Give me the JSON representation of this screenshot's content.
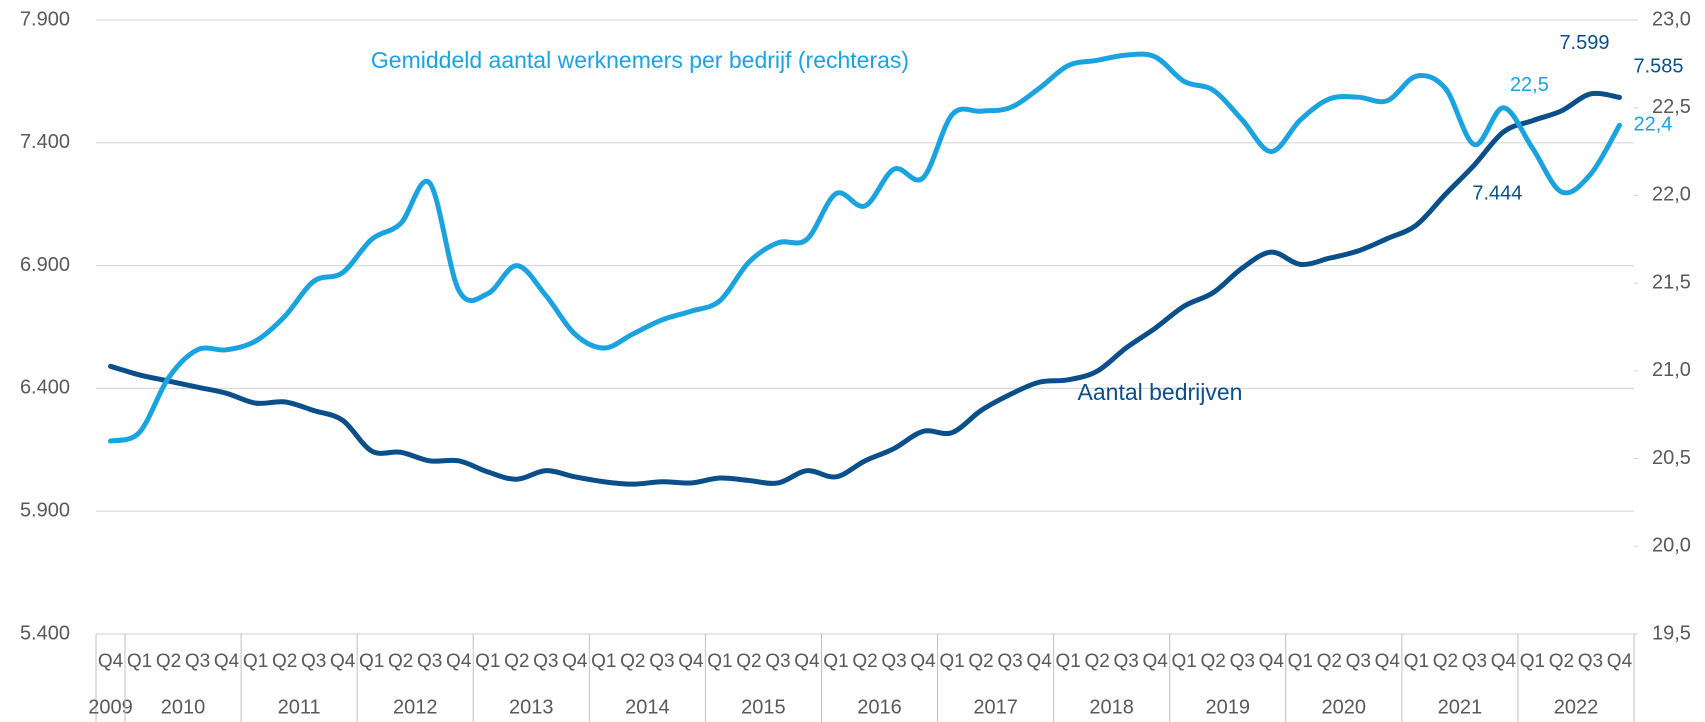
{
  "chart_data": {
    "type": "line",
    "categories": [
      "Q4",
      "Q1",
      "Q2",
      "Q3",
      "Q4",
      "Q1",
      "Q2",
      "Q3",
      "Q4",
      "Q1",
      "Q2",
      "Q3",
      "Q4",
      "Q1",
      "Q2",
      "Q3",
      "Q4",
      "Q1",
      "Q2",
      "Q3",
      "Q4",
      "Q1",
      "Q2",
      "Q3",
      "Q4",
      "Q1",
      "Q2",
      "Q3",
      "Q4",
      "Q1",
      "Q2",
      "Q3",
      "Q4",
      "Q1",
      "Q2",
      "Q3",
      "Q4",
      "Q1",
      "Q2",
      "Q3",
      "Q4",
      "Q1",
      "Q2",
      "Q3",
      "Q4",
      "Q1",
      "Q2",
      "Q3",
      "Q4",
      "Q1",
      "Q2",
      "Q3",
      "Q4"
    ],
    "years": [
      "2009",
      "2010",
      "2011",
      "2012",
      "2013",
      "2014",
      "2015",
      "2016",
      "2017",
      "2018",
      "2019",
      "2020",
      "2021",
      "2022"
    ],
    "ylim": [
      5400,
      7900
    ],
    "yticks": [
      {
        "value": 5400,
        "label": "5.400"
      },
      {
        "value": 5900,
        "label": "5.900"
      },
      {
        "value": 6400,
        "label": "6.400"
      },
      {
        "value": 6900,
        "label": "6.900"
      },
      {
        "value": 7400,
        "label": "7.400"
      },
      {
        "value": 7900,
        "label": "7.900"
      }
    ],
    "y2lim": [
      19.5,
      23.0
    ],
    "y2ticks": [
      {
        "value": 19.5,
        "label": "19,5"
      },
      {
        "value": 20.0,
        "label": "20,0"
      },
      {
        "value": 20.5,
        "label": "20,5"
      },
      {
        "value": 21.0,
        "label": "21,0"
      },
      {
        "value": 21.5,
        "label": "21,5"
      },
      {
        "value": 22.0,
        "label": "22,0"
      },
      {
        "value": 22.5,
        "label": "22,5"
      },
      {
        "value": 23.0,
        "label": "23,0"
      }
    ],
    "grid": true,
    "series": [
      {
        "name": "Aantal bedrijven",
        "color": "#0b4f8a",
        "axis": "y",
        "values": [
          6490,
          6455,
          6430,
          6405,
          6380,
          6340,
          6345,
          6310,
          6270,
          6145,
          6140,
          6105,
          6105,
          6060,
          6030,
          6065,
          6040,
          6020,
          6010,
          6020,
          6015,
          6035,
          6025,
          6015,
          6065,
          6040,
          6105,
          6155,
          6225,
          6220,
          6310,
          6375,
          6425,
          6435,
          6470,
          6565,
          6645,
          6735,
          6790,
          6890,
          6955,
          6905,
          6930,
          6960,
          7010,
          7065,
          7190,
          7310,
          7444,
          7490,
          7530,
          7599,
          7585
        ],
        "value_labels": [
          null,
          null,
          null,
          null,
          null,
          null,
          null,
          null,
          null,
          null,
          null,
          null,
          null,
          null,
          null,
          null,
          null,
          null,
          null,
          null,
          null,
          null,
          null,
          null,
          null,
          null,
          null,
          null,
          null,
          null,
          null,
          null,
          null,
          null,
          null,
          null,
          null,
          null,
          null,
          null,
          null,
          null,
          null,
          null,
          null,
          null,
          null,
          null,
          "7.444",
          null,
          null,
          "7.599",
          "7.585"
        ]
      },
      {
        "name": "Gemiddeld aantal werknemers per bedrijf (rechteras)",
        "color": "#1ba3e0",
        "axis": "y2",
        "values": [
          20.6,
          20.65,
          20.96,
          21.12,
          21.12,
          21.17,
          21.31,
          21.51,
          21.56,
          21.75,
          21.84,
          22.07,
          21.46,
          21.44,
          21.6,
          21.43,
          21.21,
          21.13,
          21.21,
          21.29,
          21.34,
          21.4,
          21.62,
          21.73,
          21.75,
          22.01,
          21.94,
          22.15,
          22.1,
          22.46,
          22.48,
          22.5,
          22.61,
          22.74,
          22.77,
          22.8,
          22.79,
          22.65,
          22.6,
          22.43,
          22.25,
          22.43,
          22.55,
          22.56,
          22.54,
          22.68,
          22.61,
          22.29,
          22.5,
          22.27,
          22.02,
          22.12,
          22.4
        ],
        "value_labels": [
          null,
          null,
          null,
          null,
          null,
          null,
          null,
          null,
          null,
          null,
          null,
          null,
          null,
          null,
          null,
          null,
          null,
          null,
          null,
          null,
          null,
          null,
          null,
          null,
          null,
          null,
          null,
          null,
          null,
          null,
          null,
          null,
          null,
          null,
          null,
          null,
          null,
          null,
          null,
          null,
          null,
          null,
          null,
          null,
          null,
          null,
          null,
          null,
          "22,5",
          null,
          null,
          null,
          "22,4"
        ]
      }
    ]
  }
}
